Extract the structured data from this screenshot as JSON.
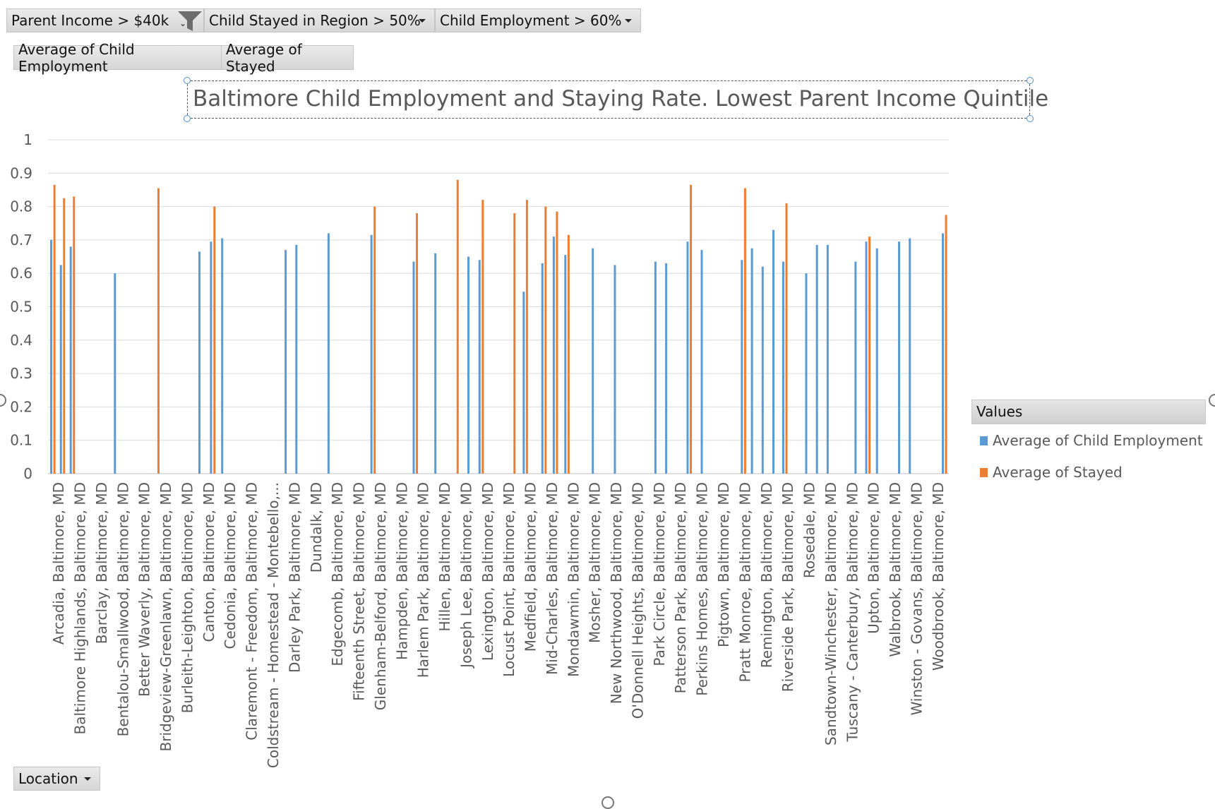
{
  "filters": [
    {
      "label": "Parent Income > $40k",
      "icon": "funnel-filter-icon"
    },
    {
      "label": "Child Stayed in Region > 50%"
    },
    {
      "label": "Child Employment > 60%"
    }
  ],
  "value_fields": [
    "Average of Child Employment",
    "Average of Stayed"
  ],
  "axis_field": {
    "label": "Location"
  },
  "legend": {
    "title": "Values"
  },
  "colors": {
    "employment": "#5b9bd5",
    "stayed": "#ed7d31",
    "grid": "#d9d9d9",
    "axis_text": "#595959"
  },
  "chart_data": {
    "type": "bar",
    "title": "Baltimore Child Employment and Staying Rate. Lowest Parent Income Quintile",
    "ylim": [
      0,
      1
    ],
    "yticks": [
      "0",
      "0.1",
      "0.2",
      "0.3",
      "0.4",
      "0.5",
      "0.6",
      "0.7",
      "0.8",
      "0.9",
      "1"
    ],
    "grid": true,
    "legend_position": "right",
    "categories": [
      "Arcadia, Baltimore, MD",
      "Baltimore Highlands, Baltimore, MD",
      "Barclay, Baltimore, MD",
      "Bentalou-Smallwood, Baltimore, MD",
      "Better Waverly, Baltimore, MD",
      "Bridgeview-Greenlawn, Baltimore, MD",
      "Burleith-Leighton, Baltimore, MD",
      "Canton, Baltimore, MD",
      "Cedonia, Baltimore, MD",
      "Claremont - Freedom, Baltimore, MD",
      "Coldstream - Homestead - Montebello,...",
      "Darley Park, Baltimore, MD",
      "Dundalk, MD",
      "Edgecomb, Baltimore, MD",
      "Fifteenth Street, Baltimore, MD",
      "Glenham-Belford, Baltimore, MD",
      "Hampden, Baltimore, MD",
      "Harlem Park, Baltimore, MD",
      "Hillen, Baltimore, MD",
      "Joseph Lee, Baltimore, MD",
      "Lexington, Baltimore, MD",
      "Locust Point, Baltimore, MD",
      "Medfield, Baltimore, MD",
      "Mid-Charles, Baltimore, MD",
      "Mondawmin, Baltimore, MD",
      "Mosher, Baltimore, MD",
      "New Northwood, Baltimore, MD",
      "O'Donnell Heights, Baltimore, MD",
      "Park Circle, Baltimore, MD",
      "Patterson Park, Baltimore, MD",
      "Perkins Homes, Baltimore, MD",
      "Pigtown, Baltimore, MD",
      "Pratt Monroe, Baltimore, MD",
      "Remington, Baltimore, MD",
      "Riverside Park, Baltimore, MD",
      "Rosedale, MD",
      "Sandtown-Winchester, Baltimore, MD",
      "Tuscany - Canterbury, Baltimore, MD",
      "Upton, Baltimore, MD",
      "Walbrook, Baltimore, MD",
      "Winston - Govans, Baltimore, MD",
      "Woodbrook, Baltimore, MD"
    ],
    "bars": [
      {
        "cat": 0,
        "pos": 0.15,
        "series": "emp",
        "value": 0.7
      },
      {
        "cat": 0,
        "pos": 0.3,
        "series": "stay",
        "value": 0.865
      },
      {
        "cat": 0,
        "pos": 0.6,
        "series": "emp",
        "value": 0.625
      },
      {
        "cat": 0,
        "pos": 0.75,
        "series": "stay",
        "value": 0.825
      },
      {
        "cat": 1,
        "pos": 0.06,
        "series": "emp",
        "value": 0.68
      },
      {
        "cat": 1,
        "pos": 0.21,
        "series": "stay",
        "value": 0.83
      },
      {
        "cat": 3,
        "pos": 0.12,
        "series": "emp",
        "value": 0.6
      },
      {
        "cat": 5,
        "pos": 0.15,
        "series": "stay",
        "value": 0.855
      },
      {
        "cat": 7,
        "pos": 0.06,
        "series": "emp",
        "value": 0.665
      },
      {
        "cat": 7,
        "pos": 0.6,
        "series": "emp",
        "value": 0.695
      },
      {
        "cat": 7,
        "pos": 0.76,
        "series": "stay",
        "value": 0.8
      },
      {
        "cat": 8,
        "pos": 0.12,
        "series": "emp",
        "value": 0.705
      },
      {
        "cat": 11,
        "pos": 0.08,
        "series": "emp",
        "value": 0.67
      },
      {
        "cat": 11,
        "pos": 0.58,
        "series": "emp",
        "value": 0.685
      },
      {
        "cat": 13,
        "pos": 0.08,
        "series": "emp",
        "value": 0.72
      },
      {
        "cat": 15,
        "pos": 0.08,
        "series": "emp",
        "value": 0.715
      },
      {
        "cat": 15,
        "pos": 0.23,
        "series": "stay",
        "value": 0.8
      },
      {
        "cat": 17,
        "pos": 0.05,
        "series": "emp",
        "value": 0.635
      },
      {
        "cat": 17,
        "pos": 0.2,
        "series": "stay",
        "value": 0.78
      },
      {
        "cat": 18,
        "pos": 0.06,
        "series": "emp",
        "value": 0.66
      },
      {
        "cat": 19,
        "pos": 0.1,
        "series": "stay",
        "value": 0.88
      },
      {
        "cat": 19,
        "pos": 0.6,
        "series": "emp",
        "value": 0.65
      },
      {
        "cat": 20,
        "pos": 0.12,
        "series": "emp",
        "value": 0.64
      },
      {
        "cat": 20,
        "pos": 0.27,
        "series": "stay",
        "value": 0.82
      },
      {
        "cat": 21,
        "pos": 0.75,
        "series": "stay",
        "value": 0.78
      },
      {
        "cat": 22,
        "pos": 0.18,
        "series": "emp",
        "value": 0.545
      },
      {
        "cat": 22,
        "pos": 0.33,
        "series": "stay",
        "value": 0.82
      },
      {
        "cat": 23,
        "pos": 0.05,
        "series": "emp",
        "value": 0.63
      },
      {
        "cat": 23,
        "pos": 0.2,
        "series": "stay",
        "value": 0.8
      },
      {
        "cat": 23,
        "pos": 0.58,
        "series": "emp",
        "value": 0.71
      },
      {
        "cat": 23,
        "pos": 0.73,
        "series": "stay",
        "value": 0.785
      },
      {
        "cat": 24,
        "pos": 0.12,
        "series": "emp",
        "value": 0.655
      },
      {
        "cat": 24,
        "pos": 0.27,
        "series": "stay",
        "value": 0.715
      },
      {
        "cat": 25,
        "pos": 0.4,
        "series": "emp",
        "value": 0.675
      },
      {
        "cat": 26,
        "pos": 0.43,
        "series": "emp",
        "value": 0.625
      },
      {
        "cat": 28,
        "pos": 0.32,
        "series": "emp",
        "value": 0.635
      },
      {
        "cat": 28,
        "pos": 0.82,
        "series": "emp",
        "value": 0.63
      },
      {
        "cat": 29,
        "pos": 0.82,
        "series": "emp",
        "value": 0.695
      },
      {
        "cat": 29,
        "pos": 0.97,
        "series": "stay",
        "value": 0.865
      },
      {
        "cat": 30,
        "pos": 0.48,
        "series": "emp",
        "value": 0.67
      },
      {
        "cat": 32,
        "pos": 0.35,
        "series": "emp",
        "value": 0.64
      },
      {
        "cat": 32,
        "pos": 0.5,
        "series": "stay",
        "value": 0.855
      },
      {
        "cat": 32,
        "pos": 0.82,
        "series": "emp",
        "value": 0.675
      },
      {
        "cat": 33,
        "pos": 0.32,
        "series": "emp",
        "value": 0.62
      },
      {
        "cat": 33,
        "pos": 0.82,
        "series": "emp",
        "value": 0.73
      },
      {
        "cat": 34,
        "pos": 0.28,
        "series": "emp",
        "value": 0.635
      },
      {
        "cat": 34,
        "pos": 0.43,
        "series": "stay",
        "value": 0.81
      },
      {
        "cat": 35,
        "pos": 0.35,
        "series": "emp",
        "value": 0.6
      },
      {
        "cat": 35,
        "pos": 0.85,
        "series": "emp",
        "value": 0.685
      },
      {
        "cat": 36,
        "pos": 0.35,
        "series": "emp",
        "value": 0.685
      },
      {
        "cat": 37,
        "pos": 0.65,
        "series": "emp",
        "value": 0.635
      },
      {
        "cat": 38,
        "pos": 0.15,
        "series": "emp",
        "value": 0.695
      },
      {
        "cat": 38,
        "pos": 0.3,
        "series": "stay",
        "value": 0.71
      },
      {
        "cat": 38,
        "pos": 0.65,
        "series": "emp",
        "value": 0.675
      },
      {
        "cat": 39,
        "pos": 0.68,
        "series": "emp",
        "value": 0.695
      },
      {
        "cat": 40,
        "pos": 0.18,
        "series": "emp",
        "value": 0.705
      },
      {
        "cat": 41,
        "pos": 0.72,
        "series": "emp",
        "value": 0.72
      },
      {
        "cat": 41,
        "pos": 0.87,
        "series": "stay",
        "value": 0.775
      }
    ],
    "series": [
      {
        "key": "emp",
        "name": "Average of Child Employment",
        "color": "#5b9bd5"
      },
      {
        "key": "stay",
        "name": "Average of Stayed",
        "color": "#ed7d31"
      }
    ]
  }
}
